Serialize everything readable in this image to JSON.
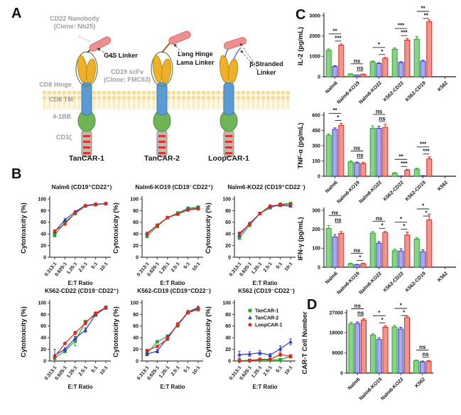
{
  "figure": {
    "panel_labels": {
      "a": "A",
      "b": "B",
      "c": "C",
      "d": "D"
    }
  },
  "panel_a": {
    "annotations": {
      "cd22_nanobody_line1": "CD22 Nanobody",
      "cd22_nanobody_line2": "(Clone: Nb25)",
      "g4s_linker": "G4S Linker",
      "cd19_scfv_line1": "CD19 scFv",
      "cd19_scfv_line2": "(Clone: FMC63)",
      "cd8_hinge": "CD8 Hinge",
      "cd8_tm": "CD8 TM",
      "four_1bb": "4-1BB",
      "cd3_zeta": "CD3ζ",
      "long_hinge_line1": "Long Hinge",
      "long_hinge_line2": "Lama Linker",
      "beta_stranded_line1": "β-Stranded",
      "beta_stranded_line2": "Linker",
      "construct_1": "TanCAR-1",
      "construct_2": "TanCAR-2",
      "construct_3": "LoopCAR-1"
    }
  },
  "series_legend": [
    {
      "name": "TanCAR-1",
      "marker": "square",
      "color": "#2ba32b",
      "fill": "#8fd48e"
    },
    {
      "name": "TanCAR-2",
      "marker": "triangle",
      "color": "#2b3ac6",
      "fill": "#b0b0e8"
    },
    {
      "name": "LoopCAR-1",
      "marker": "circle",
      "color": "#e0281f",
      "fill": "#f29a92"
    }
  ],
  "chart_data": [
    {
      "type": "line",
      "title": "Nalm6 (CD19⁺CD22⁺)",
      "xlabel": "E:T Ratio",
      "ylabel": "Cytotoxicity (%)",
      "ylim": [
        0,
        100
      ],
      "yticks": [
        0,
        20,
        40,
        60,
        80,
        100
      ],
      "categories": [
        "0.313:1",
        "0.625:1",
        "1.25:1",
        "2.5:1",
        "5:1",
        "10:1"
      ],
      "series": [
        {
          "name": "TanCAR-1",
          "values": [
            38,
            60,
            75,
            88,
            91,
            92
          ],
          "err": [
            3,
            2,
            2,
            2,
            1,
            1
          ]
        },
        {
          "name": "TanCAR-2",
          "values": [
            44,
            64,
            78,
            89,
            91,
            92
          ],
          "err": [
            2,
            2,
            2,
            1,
            1,
            1
          ]
        },
        {
          "name": "LoopCAR-1",
          "values": [
            45,
            57,
            76,
            88,
            90,
            92
          ],
          "err": [
            2,
            2,
            2,
            1,
            1,
            1
          ]
        }
      ],
      "legend": false
    },
    {
      "type": "line",
      "title": "Nalm6-KO19 (CD19⁻CD22⁺)",
      "xlabel": "E:T Ratio",
      "ylabel": "Cytotoxicity (%)",
      "ylim": [
        0,
        100
      ],
      "yticks": [
        0,
        20,
        40,
        60,
        80,
        100
      ],
      "categories": [
        "0.313:1",
        "0.625:1",
        "1.25:1",
        "2.5:1",
        "5:1",
        "10:1"
      ],
      "series": [
        {
          "name": "TanCAR-1",
          "values": [
            36,
            53,
            68,
            76,
            84,
            86
          ],
          "err": [
            2,
            2,
            2,
            2,
            2,
            2
          ]
        },
        {
          "name": "TanCAR-2",
          "values": [
            41,
            55,
            68,
            74,
            82,
            84
          ],
          "err": [
            2,
            2,
            2,
            2,
            2,
            2
          ]
        },
        {
          "name": "LoopCAR-1",
          "values": [
            40,
            55,
            68,
            74,
            81,
            83
          ],
          "err": [
            2,
            2,
            2,
            2,
            2,
            2
          ]
        }
      ],
      "legend": false
    },
    {
      "type": "line",
      "title": "Nalm6-KO22 (CD19⁺CD22⁻)",
      "xlabel": "E:T Ratio",
      "ylabel": "Cytotoxicity (%)",
      "ylim": [
        0,
        100
      ],
      "yticks": [
        0,
        20,
        40,
        60,
        80,
        100
      ],
      "categories": [
        "0.313:1",
        "0.625:1",
        "1.25:1",
        "2.5:1",
        "5:1",
        "10:1"
      ],
      "series": [
        {
          "name": "TanCAR-1",
          "values": [
            33,
            55,
            75,
            85,
            91,
            92
          ],
          "err": [
            2,
            2,
            2,
            2,
            1,
            1
          ]
        },
        {
          "name": "TanCAR-2",
          "values": [
            38,
            58,
            75,
            87,
            89,
            88
          ],
          "err": [
            2,
            2,
            2,
            1,
            1,
            1
          ]
        },
        {
          "name": "LoopCAR-1",
          "values": [
            41,
            57,
            75,
            88,
            90,
            91
          ],
          "err": [
            2,
            2,
            2,
            1,
            1,
            1
          ]
        }
      ],
      "legend": false
    },
    {
      "type": "line",
      "title": "K562-CD22 (CD19⁻CD22⁺)",
      "xlabel": "E:T Ratio",
      "ylabel": "Cytotoxicity (%)",
      "ylim": [
        0,
        100
      ],
      "yticks": [
        0,
        20,
        40,
        60,
        80,
        100
      ],
      "categories": [
        "0.313:1",
        "0.625:1",
        "1.25:1",
        "2.5:1",
        "5:1",
        "10:1"
      ],
      "series": [
        {
          "name": "TanCAR-1",
          "values": [
            5,
            17,
            34,
            67,
            79,
            92
          ],
          "err": [
            2,
            3,
            8,
            3,
            2,
            1
          ]
        },
        {
          "name": "TanCAR-2",
          "values": [
            10,
            20,
            39,
            53,
            80,
            91
          ],
          "err": [
            10,
            3,
            3,
            4,
            2,
            2
          ]
        },
        {
          "name": "LoopCAR-1",
          "values": [
            8,
            30,
            48,
            65,
            82,
            92
          ],
          "err": [
            2,
            2,
            3,
            3,
            2,
            1
          ]
        }
      ],
      "legend": false
    },
    {
      "type": "line",
      "title": "K562-CD19 (CD19⁺CD22⁻)",
      "xlabel": "E:T Ratio",
      "ylabel": "Cytotoxicity (%)",
      "ylim": [
        0,
        100
      ],
      "yticks": [
        0,
        20,
        40,
        60,
        80,
        100
      ],
      "categories": [
        "0.313:1",
        "0.625:1",
        "1.25:1",
        "2.5:1",
        "5:1",
        "10:1"
      ],
      "series": [
        {
          "name": "TanCAR-1",
          "values": [
            13,
            33,
            42,
            61,
            83,
            88
          ],
          "err": [
            2,
            2,
            3,
            3,
            2,
            2
          ]
        },
        {
          "name": "TanCAR-2",
          "values": [
            12,
            17,
            40,
            63,
            84,
            92
          ],
          "err": [
            3,
            3,
            3,
            3,
            3,
            2
          ]
        },
        {
          "name": "LoopCAR-1",
          "values": [
            18,
            25,
            38,
            63,
            83,
            90
          ],
          "err": [
            2,
            2,
            3,
            3,
            2,
            2
          ]
        }
      ],
      "legend": false
    },
    {
      "type": "line",
      "title": "K562 (CD19⁻CD22⁻)",
      "xlabel": "E:T Ratio",
      "ylabel": "Cytotoxicity (%)",
      "ylim": [
        0,
        100
      ],
      "yticks": [
        0,
        20,
        40,
        60,
        80,
        100
      ],
      "categories": [
        "0.313:1",
        "0.625:1",
        "1.25:1",
        "2.5:1",
        "5:1",
        "10:1"
      ],
      "series": [
        {
          "name": "TanCAR-1",
          "values": [
            1,
            1,
            2,
            2,
            2,
            8
          ],
          "err": [
            1,
            1,
            1,
            1,
            1,
            3
          ]
        },
        {
          "name": "TanCAR-2",
          "values": [
            11,
            12,
            14,
            10,
            21,
            33
          ],
          "err": [
            6,
            4,
            4,
            3,
            5,
            5
          ]
        },
        {
          "name": "LoopCAR-1",
          "values": [
            0,
            1,
            3,
            3,
            11,
            8
          ],
          "err": [
            2,
            2,
            2,
            2,
            3,
            3
          ]
        }
      ],
      "legend": true
    },
    {
      "type": "bar",
      "ylabel": "IL-2 (pg/mL)",
      "ylim": [
        0,
        3000
      ],
      "yticks": [
        0,
        1000,
        2000,
        3000
      ],
      "categories": [
        "Nalm6",
        "Nalm6-KO19",
        "Nalm6-KO22",
        "K562-CD22",
        "K562-CD19",
        "K562"
      ],
      "series": [
        {
          "name": "TanCAR-1",
          "values": [
            1300,
            130,
            730,
            1350,
            1850,
            0
          ],
          "err": [
            60,
            15,
            40,
            60,
            120,
            0
          ]
        },
        {
          "name": "TanCAR-2",
          "values": [
            500,
            80,
            650,
            700,
            760,
            0
          ],
          "err": [
            40,
            10,
            40,
            40,
            50,
            0
          ]
        },
        {
          "name": "LoopCAR-1",
          "values": [
            1550,
            120,
            900,
            1800,
            2700,
            0
          ],
          "err": [
            60,
            15,
            50,
            80,
            90,
            0
          ]
        }
      ],
      "sig": [
        [
          "**",
          "***"
        ],
        [
          "ns",
          "ns"
        ],
        [
          "*",
          "*"
        ],
        [
          "***",
          "***"
        ],
        [
          "**",
          "**"
        ],
        null
      ]
    },
    {
      "type": "bar",
      "ylabel": "TNF-α (pg/mL)",
      "ylim": [
        0,
        600
      ],
      "yticks": [
        0,
        150,
        300,
        450,
        600
      ],
      "categories": [
        "Nalm6",
        "Nalm6-KO19",
        "Nalm6-KO22",
        "K562-CD22",
        "K562-CD19",
        "K562"
      ],
      "series": [
        {
          "name": "TanCAR-1",
          "values": [
            400,
            140,
            470,
            30,
            70,
            0
          ],
          "err": [
            15,
            10,
            25,
            5,
            8,
            0
          ]
        },
        {
          "name": "TanCAR-2",
          "values": [
            460,
            130,
            470,
            2,
            5,
            0
          ],
          "err": [
            15,
            10,
            20,
            2,
            2,
            0
          ]
        },
        {
          "name": "LoopCAR-1",
          "values": [
            500,
            125,
            480,
            60,
            170,
            0
          ],
          "err": [
            20,
            10,
            30,
            8,
            20,
            0
          ]
        }
      ],
      "sig": [
        [
          "**",
          "*"
        ],
        [
          "ns",
          "ns"
        ],
        [
          "ns",
          "ns"
        ],
        [
          "**",
          "***"
        ],
        [
          "***",
          "***"
        ],
        null
      ]
    },
    {
      "type": "bar",
      "ylabel": "IFN-γ (pg/mL)",
      "ylim": [
        0,
        300
      ],
      "yticks": [
        0,
        100,
        200,
        300
      ],
      "categories": [
        "Nalm6",
        "Nalm6-KO19",
        "Nalm6-KO22",
        "K562-CD22",
        "K562-CD19",
        "K562"
      ],
      "series": [
        {
          "name": "TanCAR-1",
          "values": [
            205,
            18,
            180,
            87,
            148,
            0
          ],
          "err": [
            15,
            3,
            8,
            8,
            8,
            0
          ]
        },
        {
          "name": "TanCAR-2",
          "values": [
            160,
            13,
            127,
            85,
            82,
            0
          ],
          "err": [
            12,
            2,
            8,
            12,
            10,
            0
          ]
        },
        {
          "name": "LoopCAR-1",
          "values": [
            178,
            18,
            182,
            170,
            250,
            0
          ],
          "err": [
            10,
            3,
            8,
            15,
            30,
            0
          ]
        }
      ],
      "sig": [
        [
          "ns",
          "ns"
        ],
        [
          "ns",
          "*"
        ],
        [
          "ns",
          "*"
        ],
        [
          "*",
          "*"
        ],
        [
          "*",
          "*"
        ],
        null
      ]
    },
    {
      "type": "bar",
      "ylabel": "CAR-T Cell Number",
      "ylim": [
        0,
        27000
      ],
      "yticks": [
        0,
        9000,
        18000,
        27000
      ],
      "categories": [
        "Nalm6",
        "Nalm6-KO19",
        "Nalm6-KO22",
        "K562"
      ],
      "series": [
        {
          "name": "TanCAR-1",
          "values": [
            22000,
            17000,
            20600,
            5500
          ],
          "err": [
            700,
            600,
            700,
            300
          ]
        },
        {
          "name": "TanCAR-2",
          "values": [
            22200,
            15000,
            19700,
            5000
          ],
          "err": [
            700,
            800,
            800,
            400
          ]
        },
        {
          "name": "LoopCAR-1",
          "values": [
            23700,
            20500,
            24800,
            5300
          ],
          "err": [
            600,
            700,
            700,
            300
          ]
        }
      ],
      "sig": [
        [
          "ns",
          "ns"
        ],
        [
          "*",
          "*"
        ],
        [
          "*",
          "*"
        ],
        [
          "ns",
          "ns"
        ]
      ]
    }
  ]
}
